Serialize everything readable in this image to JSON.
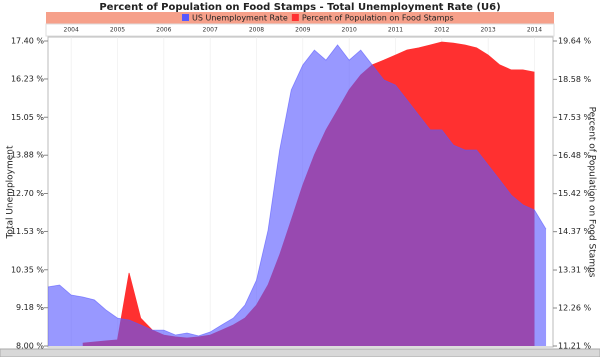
{
  "chart_data": {
    "type": "area",
    "title": "Percent of Population on Food Stamps - Total Unemployment Rate (U6)",
    "y_label": "Total Unemployment",
    "y2_label": "Percent of Population on Food Stamps",
    "x": [
      2004.0,
      2004.25,
      2004.5,
      2004.75,
      2005.0,
      2005.25,
      2005.5,
      2005.75,
      2006.0,
      2006.25,
      2006.5,
      2006.75,
      2007.0,
      2007.25,
      2007.5,
      2007.75,
      2008.0,
      2008.25,
      2008.5,
      2008.75,
      2009.0,
      2009.25,
      2009.5,
      2009.75,
      2010.0,
      2010.25,
      2010.5,
      2010.75,
      2011.0,
      2011.25,
      2011.5,
      2011.75,
      2012.0,
      2012.25,
      2012.5,
      2012.75,
      2013.0,
      2013.25,
      2013.5,
      2013.75,
      2014.0,
      2014.25,
      2014.5,
      2014.75
    ],
    "xlim": [
      2004.0,
      2014.9
    ],
    "xticks": [
      {
        "value": 2004.5,
        "label": "2004"
      },
      {
        "value": 2005.5,
        "label": "2005"
      },
      {
        "value": 2006.5,
        "label": "2006"
      },
      {
        "value": 2007.5,
        "label": "2007"
      },
      {
        "value": 2008.5,
        "label": "2008"
      },
      {
        "value": 2009.5,
        "label": "2009"
      },
      {
        "value": 2010.5,
        "label": "2010"
      },
      {
        "value": 2011.5,
        "label": "2011"
      },
      {
        "value": 2012.5,
        "label": "2012"
      },
      {
        "value": 2013.5,
        "label": "2013"
      },
      {
        "value": 2014.5,
        "label": "2014"
      }
    ],
    "ylim": [
      8.0,
      17.4
    ],
    "yticks": [
      {
        "value": 17.4,
        "label": "17.40 %"
      },
      {
        "value": 16.23,
        "label": "16.23 %"
      },
      {
        "value": 15.05,
        "label": "15.05 %"
      },
      {
        "value": 13.88,
        "label": "13.88 %"
      },
      {
        "value": 12.7,
        "label": "12.70 %"
      },
      {
        "value": 11.53,
        "label": "11.53 %"
      },
      {
        "value": 10.35,
        "label": "10.35 %"
      },
      {
        "value": 9.18,
        "label": "9.18 %"
      },
      {
        "value": 8.0,
        "label": "8.00 %"
      }
    ],
    "y2lim": [
      11.21,
      19.64
    ],
    "y2ticks": [
      {
        "value": 19.64,
        "label": "19.64 %"
      },
      {
        "value": 18.58,
        "label": "18.58 %"
      },
      {
        "value": 17.53,
        "label": "17.53 %"
      },
      {
        "value": 16.48,
        "label": "16.48 %"
      },
      {
        "value": 15.42,
        "label": "15.42 %"
      },
      {
        "value": 14.37,
        "label": "14.37 %"
      },
      {
        "value": 13.31,
        "label": "13.31 %"
      },
      {
        "value": 12.26,
        "label": "12.26 %"
      },
      {
        "value": 11.21,
        "label": "11.21 %"
      }
    ],
    "series": [
      {
        "name": "Percent of Population on Food Stamps",
        "color": "#ff3030",
        "axis": "y2",
        "values": [
          null,
          null,
          null,
          11.29,
          11.32,
          11.35,
          11.38,
          13.23,
          11.98,
          11.65,
          11.51,
          11.46,
          11.43,
          11.46,
          11.51,
          11.65,
          11.79,
          11.98,
          12.34,
          12.9,
          13.73,
          14.69,
          15.66,
          16.49,
          17.18,
          17.73,
          18.29,
          18.7,
          18.98,
          19.11,
          19.25,
          19.39,
          19.45,
          19.53,
          19.61,
          19.58,
          19.53,
          19.45,
          19.25,
          18.98,
          18.84,
          18.84,
          18.78,
          null
        ]
      },
      {
        "name": "US Unemployment Rate",
        "color": "#5858ff",
        "axis": "y",
        "values": [
          9.82,
          9.88,
          9.57,
          9.51,
          9.42,
          9.11,
          8.86,
          8.8,
          8.65,
          8.49,
          8.49,
          8.34,
          8.4,
          8.31,
          8.43,
          8.65,
          8.86,
          9.26,
          10.03,
          11.57,
          14.04,
          15.89,
          16.66,
          17.12,
          16.81,
          17.28,
          16.81,
          17.12,
          16.66,
          16.2,
          16.04,
          15.58,
          15.12,
          14.66,
          14.66,
          14.19,
          14.04,
          14.04,
          13.58,
          13.12,
          12.65,
          12.35,
          12.19,
          11.6
        ]
      }
    ],
    "grid": true
  }
}
